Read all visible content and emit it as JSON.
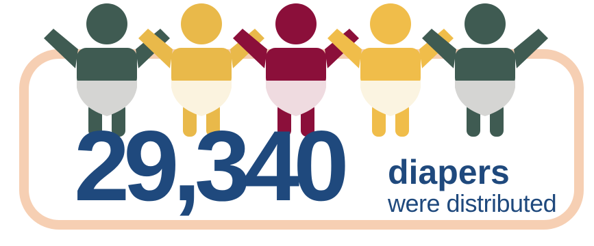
{
  "stat": {
    "value": "29,340",
    "label_main": "diapers",
    "label_sub": "were distributed"
  },
  "colors": {
    "frame": "#f6cfb3",
    "text": "#1f497d"
  },
  "babies": [
    {
      "body": "#3f5b52",
      "diaper": "#d5d5d3"
    },
    {
      "body": "#e9b94a",
      "diaper": "#fbf3df"
    },
    {
      "body": "#8b0f3a",
      "diaper": "#efdbe0"
    },
    {
      "body": "#f0bd4a",
      "diaper": "#fbf4e1"
    },
    {
      "body": "#3f5b52",
      "diaper": "#d5d5d3"
    }
  ]
}
